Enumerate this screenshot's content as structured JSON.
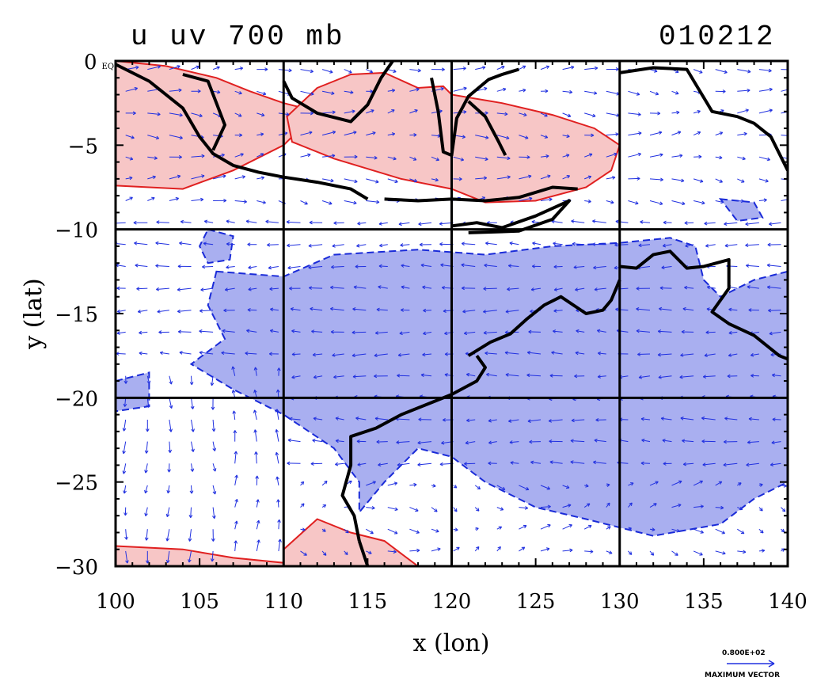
{
  "header": {
    "title": "u  uv  700  mb",
    "date": "010212"
  },
  "legend": {
    "vector_value": "0.800E+02",
    "vector_label": "MAXIMUM VECTOR"
  },
  "chart_data": {
    "type": "contour-vector map",
    "xlabel": "x (lon)",
    "ylabel": "y (lat)",
    "xlim": [
      100,
      140
    ],
    "ylim": [
      -30,
      0
    ],
    "xticks": [
      100,
      105,
      110,
      115,
      120,
      125,
      130,
      135,
      140
    ],
    "yticks": [
      0,
      -5,
      -10,
      -15,
      -20,
      -25,
      -30
    ],
    "ytick_labels": [
      "0 EQ",
      "−5",
      "−10",
      "−15",
      "−20",
      "−25",
      "−30"
    ],
    "gridlines_x": [
      110,
      120,
      130
    ],
    "gridlines_y": [
      -10,
      -20
    ],
    "colors": {
      "positive_fill": "#f7c6c6",
      "positive_line": "#e02020",
      "negative_fill": "#a9aff0",
      "negative_line": "#1a2bd8",
      "vector": "#2030e0",
      "coast": "#000000"
    },
    "regions": [
      {
        "sign": "positive",
        "points": [
          [
            100,
            0
          ],
          [
            103,
            -0.3
          ],
          [
            106,
            -1
          ],
          [
            108,
            -1.8
          ],
          [
            110,
            -2.5
          ],
          [
            112,
            -3
          ],
          [
            110,
            -5
          ],
          [
            107,
            -6.5
          ],
          [
            104,
            -7.6
          ],
          [
            100,
            -7.4
          ]
        ]
      },
      {
        "sign": "positive",
        "points": [
          [
            112,
            -1.6
          ],
          [
            114,
            -0.8
          ],
          [
            116,
            -0.7
          ],
          [
            118,
            -1.6
          ],
          [
            119.5,
            -1.5
          ],
          [
            120,
            -2
          ],
          [
            123,
            -2.5
          ],
          [
            126,
            -3.2
          ],
          [
            128.5,
            -4
          ],
          [
            130,
            -5
          ],
          [
            129.5,
            -6.5
          ],
          [
            128,
            -7.5
          ],
          [
            125,
            -8.3
          ],
          [
            122,
            -8.4
          ],
          [
            120,
            -7.6
          ],
          [
            117,
            -7
          ],
          [
            113,
            -5.8
          ],
          [
            110.5,
            -4.8
          ],
          [
            110.2,
            -3.3
          ]
        ]
      },
      {
        "sign": "positive",
        "points": [
          [
            100,
            -28.8
          ],
          [
            104,
            -29
          ],
          [
            107,
            -29.5
          ],
          [
            110,
            -29.8
          ],
          [
            110,
            -30
          ],
          [
            100,
            -30
          ]
        ]
      },
      {
        "sign": "positive",
        "points": [
          [
            110,
            -29
          ],
          [
            112,
            -27.2
          ],
          [
            114,
            -28
          ],
          [
            116,
            -28.5
          ],
          [
            118,
            -30
          ],
          [
            110,
            -30
          ]
        ]
      },
      {
        "sign": "negative",
        "points": [
          [
            105.5,
            -10
          ],
          [
            107,
            -10.4
          ],
          [
            106.8,
            -11.8
          ],
          [
            105.5,
            -12
          ],
          [
            105,
            -11
          ]
        ]
      },
      {
        "sign": "negative",
        "points": [
          [
            106,
            -12.5
          ],
          [
            110,
            -12.8
          ],
          [
            113,
            -11.5
          ],
          [
            118,
            -11.2
          ],
          [
            122,
            -11.5
          ],
          [
            126,
            -11
          ],
          [
            130,
            -10.8
          ],
          [
            133,
            -10.5
          ],
          [
            134.5,
            -11
          ],
          [
            135,
            -13
          ],
          [
            136,
            -14
          ],
          [
            138,
            -13
          ],
          [
            140,
            -12.5
          ],
          [
            140,
            -25
          ],
          [
            138,
            -26
          ],
          [
            136,
            -27.5
          ],
          [
            132,
            -28.2
          ],
          [
            128,
            -27.2
          ],
          [
            125,
            -26.5
          ],
          [
            122,
            -25
          ],
          [
            120,
            -23.5
          ],
          [
            118,
            -23
          ],
          [
            116,
            -25
          ],
          [
            114.5,
            -26.8
          ],
          [
            114.5,
            -25
          ],
          [
            113,
            -23
          ],
          [
            110,
            -21
          ],
          [
            107,
            -19.5
          ],
          [
            104.5,
            -18
          ],
          [
            106.5,
            -16.5
          ],
          [
            105.5,
            -14.5
          ]
        ]
      },
      {
        "sign": "negative",
        "points": [
          [
            100,
            -19
          ],
          [
            102,
            -18.5
          ],
          [
            102,
            -20.5
          ],
          [
            100,
            -20.8
          ]
        ]
      },
      {
        "sign": "negative",
        "points": [
          [
            136,
            -8.2
          ],
          [
            138,
            -8.4
          ],
          [
            138.5,
            -9.3
          ],
          [
            137,
            -9.5
          ]
        ]
      }
    ],
    "coastlines": [
      [
        [
          100,
          -0.2
        ],
        [
          102,
          -1.2
        ],
        [
          104,
          -2.8
        ],
        [
          105,
          -4.5
        ],
        [
          105.8,
          -5.5
        ],
        [
          107,
          -6.2
        ],
        [
          108.5,
          -6.6
        ],
        [
          110,
          -6.9
        ],
        [
          112,
          -7.2
        ],
        [
          114,
          -7.6
        ],
        [
          115,
          -8.2
        ]
      ],
      [
        [
          104,
          -0.8
        ],
        [
          105.5,
          -1.2
        ],
        [
          106,
          -2.5
        ],
        [
          106.5,
          -3.8
        ],
        [
          105.8,
          -5.3
        ]
      ],
      [
        [
          110,
          -1.2
        ],
        [
          110.5,
          -2.2
        ],
        [
          112,
          -3.1
        ],
        [
          114,
          -3.6
        ],
        [
          115,
          -2.6
        ],
        [
          115.8,
          -1.0
        ],
        [
          116.5,
          0
        ]
      ],
      [
        [
          116,
          -8.2
        ],
        [
          118,
          -8.3
        ],
        [
          120,
          -8.2
        ],
        [
          122,
          -8.3
        ],
        [
          124,
          -8.1
        ],
        [
          126,
          -7.5
        ],
        [
          127.5,
          -7.6
        ]
      ],
      [
        [
          120,
          -9.8
        ],
        [
          121.5,
          -9.6
        ],
        [
          123,
          -9.9
        ],
        [
          125,
          -9.2
        ],
        [
          127,
          -8.3
        ],
        [
          126,
          -9.4
        ],
        [
          124,
          -10.1
        ],
        [
          121,
          -10.2
        ]
      ],
      [
        [
          118.8,
          -1
        ],
        [
          119.2,
          -3
        ],
        [
          119.5,
          -5.4
        ],
        [
          120,
          -5.6
        ],
        [
          120.3,
          -3.4
        ],
        [
          121,
          -2.1
        ],
        [
          122.2,
          -1.1
        ],
        [
          123,
          -0.8
        ],
        [
          124,
          -0.5
        ]
      ],
      [
        [
          121,
          -2.4
        ],
        [
          122,
          -3.3
        ],
        [
          122.8,
          -4.8
        ],
        [
          123.2,
          -5.6
        ]
      ],
      [
        [
          130,
          -0.7
        ],
        [
          132,
          -0.4
        ],
        [
          134,
          -0.5
        ],
        [
          135.5,
          -3
        ],
        [
          137,
          -3.3
        ],
        [
          138,
          -3.7
        ],
        [
          139,
          -4.5
        ],
        [
          140,
          -6.5
        ]
      ],
      [
        [
          130,
          -12.2
        ],
        [
          131,
          -12.3
        ],
        [
          132,
          -11.5
        ],
        [
          133,
          -11.3
        ],
        [
          134,
          -12.3
        ],
        [
          135,
          -12.2
        ],
        [
          136.5,
          -11.8
        ],
        [
          136.5,
          -13.5
        ],
        [
          135.5,
          -14.9
        ],
        [
          136.5,
          -15.6
        ],
        [
          138,
          -16.3
        ],
        [
          139.5,
          -17.5
        ],
        [
          140,
          -17.7
        ]
      ],
      [
        [
          121,
          -17.5
        ],
        [
          122.3,
          -16.7
        ],
        [
          123.5,
          -16.2
        ],
        [
          124.5,
          -15.3
        ],
        [
          125.5,
          -14.5
        ],
        [
          126.5,
          -14
        ],
        [
          128,
          -15
        ],
        [
          129,
          -14.8
        ],
        [
          129.5,
          -14.2
        ],
        [
          130,
          -13
        ]
      ],
      [
        [
          120,
          -19.8
        ],
        [
          121.5,
          -19
        ],
        [
          122,
          -18.2
        ],
        [
          121.5,
          -17.5
        ]
      ],
      [
        [
          114.5,
          -28.5
        ],
        [
          114.2,
          -27
        ],
        [
          113.5,
          -25.8
        ],
        [
          114,
          -24
        ],
        [
          114,
          -22.3
        ],
        [
          115.5,
          -21.8
        ],
        [
          117,
          -21
        ],
        [
          119,
          -20.2
        ],
        [
          120,
          -19.8
        ]
      ],
      [
        [
          114.5,
          -28.5
        ],
        [
          115,
          -30
        ]
      ]
    ]
  }
}
